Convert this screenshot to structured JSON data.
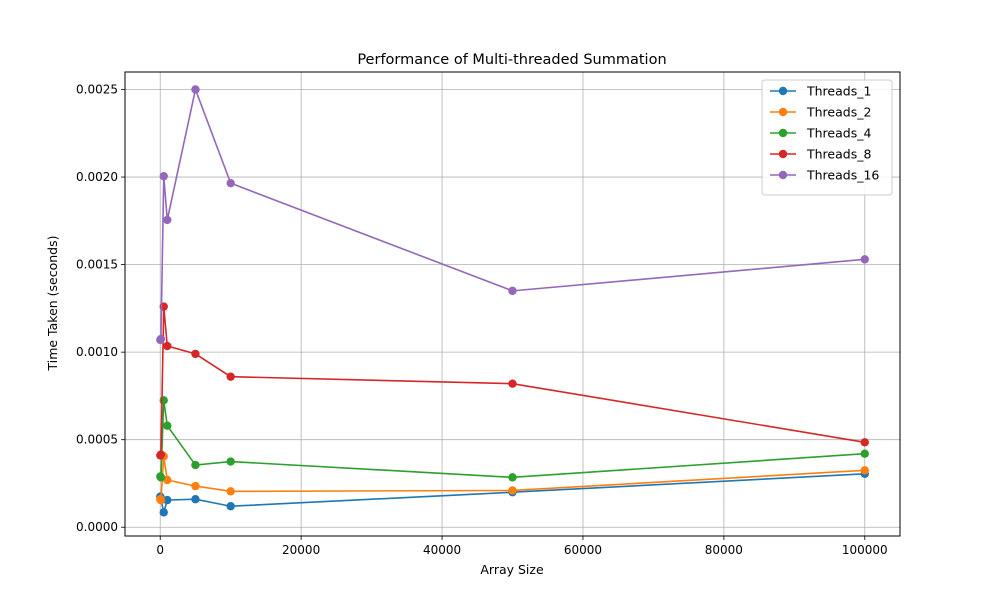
{
  "chart_data": {
    "type": "line",
    "title": "Performance of Multi-threaded Summation",
    "xlabel": "Array Size",
    "ylabel": "Time Taken (seconds)",
    "xlim": [
      -5000,
      105000
    ],
    "ylim": [
      -5e-05,
      0.0026
    ],
    "xticks": [
      0,
      20000,
      40000,
      60000,
      80000,
      100000
    ],
    "xtick_labels": [
      "0",
      "20000",
      "40000",
      "60000",
      "80000",
      "100000"
    ],
    "yticks": [
      0.0,
      0.0005,
      0.001,
      0.0015,
      0.002,
      0.0025
    ],
    "ytick_labels": [
      "0.0000",
      "0.0005",
      "0.0010",
      "0.0015",
      "0.0020",
      "0.0025"
    ],
    "grid": true,
    "legend_position": "top-right",
    "x": [
      10,
      100,
      500,
      1000,
      5000,
      10000,
      50000,
      100000
    ],
    "series": [
      {
        "name": "Threads_1",
        "color": "#1f77b4",
        "values": [
          0.000175,
          0.00016,
          8.5e-05,
          0.000155,
          0.00016,
          0.00012,
          0.0002,
          0.000305
        ]
      },
      {
        "name": "Threads_2",
        "color": "#ff7f0e",
        "values": [
          0.00016,
          0.000155,
          0.000405,
          0.00027,
          0.000235,
          0.000205,
          0.00021,
          0.000325
        ]
      },
      {
        "name": "Threads_4",
        "color": "#2ca02c",
        "values": [
          0.00029,
          0.000285,
          0.000725,
          0.00058,
          0.000355,
          0.000375,
          0.000285,
          0.00042
        ]
      },
      {
        "name": "Threads_8",
        "color": "#d62728",
        "values": [
          0.00041,
          0.000415,
          0.00126,
          0.001035,
          0.00099,
          0.00086,
          0.00082,
          0.000485
        ]
      },
      {
        "name": "Threads_16",
        "color": "#9467bd",
        "values": [
          0.00107,
          0.001075,
          0.002005,
          0.001755,
          0.0025,
          0.001965,
          0.00135,
          0.00153
        ]
      }
    ]
  }
}
